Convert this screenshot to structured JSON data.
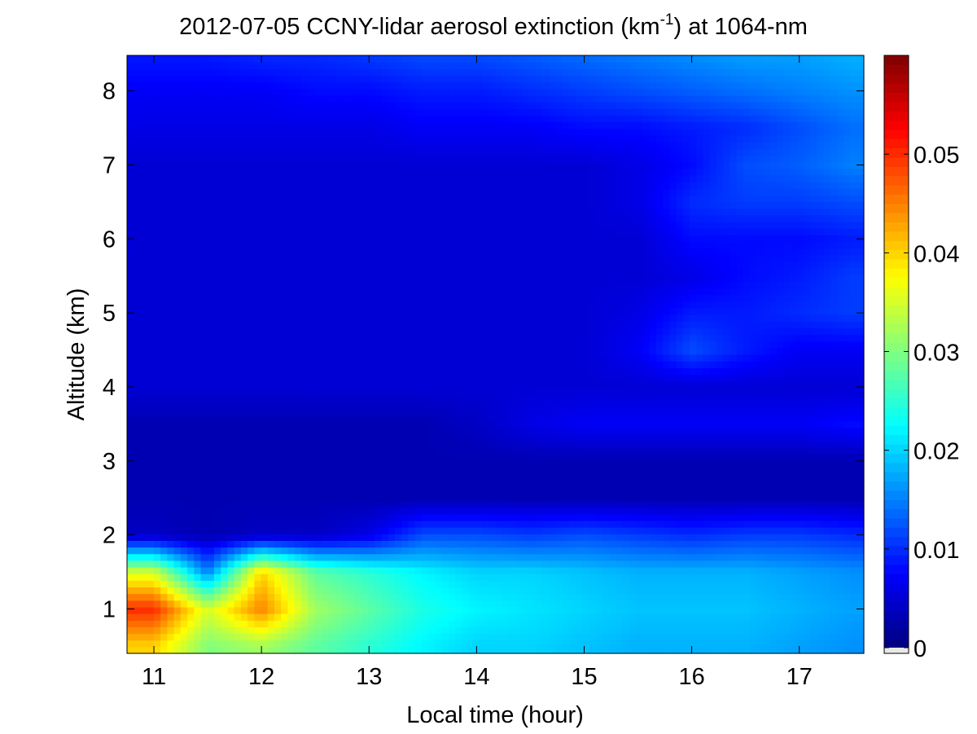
{
  "chart_data": {
    "type": "heatmap",
    "title_main": "2012-07-05 CCNY-lidar aerosol extinction (km",
    "title_sup": "-1",
    "title_tail": ") at 1064-nm",
    "xlabel": "Local time (hour)",
    "ylabel": "Altitude (km)",
    "xlim": [
      10.75,
      17.6
    ],
    "ylim": [
      0.4,
      8.48
    ],
    "xticks": [
      11,
      12,
      13,
      14,
      15,
      16,
      17
    ],
    "yticks": [
      1,
      2,
      3,
      4,
      5,
      6,
      7,
      8
    ],
    "colormap": "jet",
    "clim": [
      0,
      0.06
    ],
    "colorbar_ticks": [
      "0",
      "0.01",
      "0.02",
      "0.03",
      "0.04",
      "0.05"
    ],
    "colorbar_tick_values": [
      0,
      0.01,
      0.02,
      0.03,
      0.04,
      0.05
    ],
    "time_centers": [
      11,
      11.5,
      12,
      12.5,
      13,
      13.5,
      14,
      14.5,
      15,
      15.5,
      16,
      16.5,
      17,
      17.5
    ],
    "altitude_centers": [
      0.5,
      1,
      1.5,
      2,
      2.5,
      3,
      3.5,
      4,
      4.5,
      5,
      5.5,
      6,
      6.5,
      7,
      7.5,
      8,
      8.5
    ],
    "values": [
      [
        0.04,
        0.03,
        0.032,
        0.028,
        0.025,
        0.022,
        0.02,
        0.02,
        0.019,
        0.018,
        0.018,
        0.018,
        0.017,
        0.016
      ],
      [
        0.05,
        0.035,
        0.045,
        0.032,
        0.028,
        0.024,
        0.022,
        0.021,
        0.02,
        0.019,
        0.019,
        0.019,
        0.018,
        0.017
      ],
      [
        0.035,
        0.015,
        0.04,
        0.028,
        0.025,
        0.022,
        0.02,
        0.02,
        0.019,
        0.018,
        0.018,
        0.018,
        0.017,
        0.016
      ],
      [
        0.004,
        0.003,
        0.004,
        0.004,
        0.006,
        0.012,
        0.012,
        0.011,
        0.012,
        0.011,
        0.01,
        0.011,
        0.011,
        0.01
      ],
      [
        0.003,
        0.003,
        0.003,
        0.003,
        0.003,
        0.003,
        0.003,
        0.003,
        0.003,
        0.003,
        0.003,
        0.003,
        0.003,
        0.003
      ],
      [
        0.003,
        0.003,
        0.003,
        0.003,
        0.003,
        0.003,
        0.003,
        0.003,
        0.003,
        0.003,
        0.003,
        0.003,
        0.003,
        0.003
      ],
      [
        0.003,
        0.003,
        0.003,
        0.003,
        0.003,
        0.003,
        0.004,
        0.006,
        0.007,
        0.007,
        0.007,
        0.007,
        0.007,
        0.008
      ],
      [
        0.005,
        0.005,
        0.005,
        0.005,
        0.005,
        0.005,
        0.005,
        0.005,
        0.005,
        0.005,
        0.005,
        0.005,
        0.005,
        0.005
      ],
      [
        0.005,
        0.005,
        0.005,
        0.005,
        0.005,
        0.005,
        0.005,
        0.005,
        0.005,
        0.007,
        0.012,
        0.009,
        0.007,
        0.007
      ],
      [
        0.005,
        0.005,
        0.005,
        0.005,
        0.005,
        0.005,
        0.005,
        0.005,
        0.005,
        0.006,
        0.009,
        0.009,
        0.01,
        0.011
      ],
      [
        0.005,
        0.005,
        0.005,
        0.005,
        0.005,
        0.005,
        0.005,
        0.005,
        0.005,
        0.005,
        0.006,
        0.008,
        0.009,
        0.011
      ],
      [
        0.005,
        0.005,
        0.005,
        0.005,
        0.005,
        0.005,
        0.005,
        0.005,
        0.005,
        0.005,
        0.008,
        0.008,
        0.008,
        0.009
      ],
      [
        0.005,
        0.005,
        0.005,
        0.005,
        0.005,
        0.005,
        0.005,
        0.005,
        0.005,
        0.006,
        0.01,
        0.011,
        0.011,
        0.012
      ],
      [
        0.005,
        0.005,
        0.005,
        0.005,
        0.005,
        0.005,
        0.005,
        0.005,
        0.005,
        0.006,
        0.008,
        0.012,
        0.013,
        0.015
      ],
      [
        0.006,
        0.006,
        0.006,
        0.006,
        0.006,
        0.007,
        0.007,
        0.007,
        0.008,
        0.008,
        0.009,
        0.01,
        0.012,
        0.014
      ],
      [
        0.007,
        0.007,
        0.007,
        0.008,
        0.008,
        0.009,
        0.009,
        0.01,
        0.011,
        0.012,
        0.013,
        0.014,
        0.015,
        0.016
      ],
      [
        0.009,
        0.009,
        0.01,
        0.01,
        0.011,
        0.012,
        0.012,
        0.013,
        0.014,
        0.015,
        0.016,
        0.017,
        0.017,
        0.018
      ]
    ]
  }
}
